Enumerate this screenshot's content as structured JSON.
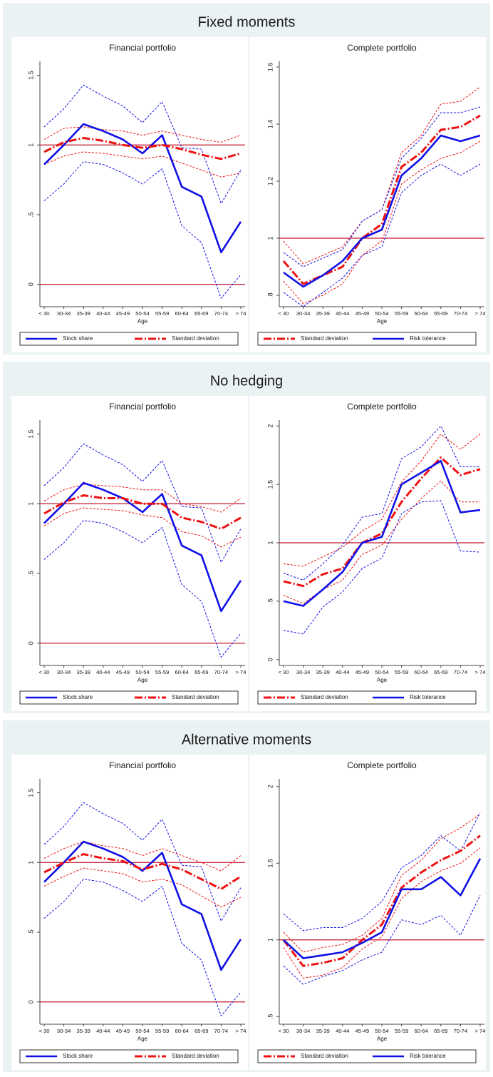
{
  "panel_titles": [
    "Fixed moments",
    "No hedging",
    "Alternative moments"
  ],
  "chart_data": [
    {
      "type": "line",
      "title": "Financial portfolio",
      "x_label": "Age",
      "categories": [
        "< 30",
        "30-34",
        "35-39",
        "40-44",
        "45-49",
        "50-54",
        "55-59",
        "60-64",
        "65-69",
        "70-74",
        "> 74"
      ],
      "series": [
        {
          "name": "Stock share",
          "color": "#1010e6",
          "line_style": "solid",
          "values": [
            0.86,
            1.0,
            1.15,
            1.1,
            1.04,
            0.94,
            1.07,
            0.7,
            0.63,
            0.23,
            0.45
          ],
          "upper": [
            1.13,
            1.26,
            1.43,
            1.35,
            1.28,
            1.16,
            1.31,
            0.98,
            0.97,
            0.58,
            0.82
          ],
          "lower": [
            0.6,
            0.72,
            0.88,
            0.86,
            0.8,
            0.72,
            0.83,
            0.42,
            0.3,
            -0.1,
            0.07
          ]
        },
        {
          "name": "Standard deviation",
          "color": "#ee1111",
          "line_style": "dash-dot",
          "values": [
            0.95,
            1.02,
            1.05,
            1.03,
            1.0,
            0.98,
            1.0,
            0.97,
            0.93,
            0.9,
            0.94
          ],
          "upper": [
            1.04,
            1.12,
            1.13,
            1.11,
            1.1,
            1.07,
            1.1,
            1.07,
            1.04,
            1.02,
            1.07
          ],
          "lower": [
            0.86,
            0.92,
            0.95,
            0.94,
            0.92,
            0.9,
            0.92,
            0.87,
            0.82,
            0.77,
            0.8
          ]
        }
      ],
      "reference_lines": [
        1,
        0
      ],
      "reference_color": "#c0142c",
      "ylim": [
        -0.16,
        1.6
      ],
      "yticks": [
        0,
        {
          "value": 0.5,
          "label": ".5"
        },
        1,
        1.5
      ]
    },
    {
      "type": "line",
      "title": "Complete portfolio",
      "x_label": "Age",
      "categories": [
        "< 30",
        "30-34",
        "35-39",
        "40-44",
        "45-49",
        "50-54",
        "55-59",
        "60-64",
        "65-69",
        "70-74",
        "> 74"
      ],
      "series": [
        {
          "name": "Standard deviation",
          "color": "#ee1111",
          "line_style": "dash-dot",
          "values": [
            0.92,
            0.84,
            0.87,
            0.9,
            1.0,
            1.05,
            1.25,
            1.3,
            1.38,
            1.39,
            1.43
          ],
          "upper": [
            0.99,
            0.91,
            0.94,
            0.97,
            1.06,
            1.1,
            1.3,
            1.36,
            1.47,
            1.48,
            1.53
          ],
          "lower": [
            0.85,
            0.77,
            0.8,
            0.84,
            0.94,
            0.99,
            1.19,
            1.24,
            1.28,
            1.3,
            1.34
          ]
        },
        {
          "name": "Risk tolerance",
          "color": "#1010e6",
          "line_style": "solid",
          "values": [
            0.88,
            0.83,
            0.87,
            0.92,
            1.0,
            1.03,
            1.22,
            1.28,
            1.36,
            1.34,
            1.36
          ],
          "upper": [
            0.95,
            0.9,
            0.93,
            0.96,
            1.06,
            1.1,
            1.28,
            1.35,
            1.44,
            1.44,
            1.46
          ],
          "lower": [
            0.81,
            0.76,
            0.81,
            0.86,
            0.94,
            0.97,
            1.16,
            1.22,
            1.26,
            1.22,
            1.26
          ]
        }
      ],
      "reference_lines": [
        1
      ],
      "reference_color": "#c0142c",
      "ylim": [
        0.76,
        1.62
      ],
      "yticks": [
        {
          "value": 0.8,
          "label": ".8"
        },
        1,
        1.2,
        1.4,
        1.6
      ]
    },
    {
      "type": "line",
      "title": "Financial portfolio",
      "x_label": "Age",
      "categories": [
        "< 30",
        "30-34",
        "35-39",
        "40-44",
        "45-49",
        "50-54",
        "55-59",
        "60-64",
        "65-69",
        "70-74",
        "> 74"
      ],
      "series": [
        {
          "name": "Stock share",
          "color": "#1010e6",
          "line_style": "solid",
          "values": [
            0.86,
            1.0,
            1.15,
            1.1,
            1.04,
            0.94,
            1.07,
            0.7,
            0.63,
            0.23,
            0.45
          ],
          "upper": [
            1.13,
            1.26,
            1.43,
            1.35,
            1.28,
            1.16,
            1.31,
            0.98,
            0.97,
            0.58,
            0.82
          ],
          "lower": [
            0.6,
            0.72,
            0.88,
            0.86,
            0.8,
            0.72,
            0.83,
            0.42,
            0.3,
            -0.1,
            0.07
          ]
        },
        {
          "name": "Standard deviation",
          "color": "#ee1111",
          "line_style": "dash-dot",
          "values": [
            0.93,
            1.01,
            1.06,
            1.04,
            1.04,
            1.0,
            1.0,
            0.9,
            0.87,
            0.82,
            0.9
          ],
          "upper": [
            1.02,
            1.1,
            1.14,
            1.13,
            1.12,
            1.1,
            1.1,
            1.0,
            0.98,
            0.94,
            1.04
          ],
          "lower": [
            0.84,
            0.93,
            0.97,
            0.96,
            0.95,
            0.92,
            0.9,
            0.8,
            0.77,
            0.69,
            0.76
          ]
        }
      ],
      "reference_lines": [
        1,
        0
      ],
      "reference_color": "#c0142c",
      "ylim": [
        -0.16,
        1.6
      ],
      "yticks": [
        0,
        {
          "value": 0.5,
          "label": ".5"
        },
        1,
        1.5
      ]
    },
    {
      "type": "line",
      "title": "Complete portfolio",
      "x_label": "Age",
      "categories": [
        "< 30",
        "30-34",
        "35-39",
        "40-44",
        "45-49",
        "50-54",
        "55-59",
        "60-64",
        "65-69",
        "70-74",
        "> 74"
      ],
      "series": [
        {
          "name": "Standard deviation",
          "color": "#ee1111",
          "line_style": "dash-dot",
          "values": [
            0.67,
            0.63,
            0.73,
            0.78,
            1.0,
            1.08,
            1.35,
            1.55,
            1.73,
            1.58,
            1.63
          ],
          "upper": [
            0.82,
            0.8,
            0.88,
            0.96,
            1.1,
            1.2,
            1.52,
            1.7,
            1.93,
            1.8,
            1.93
          ],
          "lower": [
            0.55,
            0.48,
            0.6,
            0.68,
            0.9,
            0.98,
            1.2,
            1.38,
            1.53,
            1.35,
            1.35
          ]
        },
        {
          "name": "Risk tolerance",
          "color": "#1010e6",
          "line_style": "solid",
          "values": [
            0.5,
            0.46,
            0.6,
            0.75,
            1.0,
            1.05,
            1.5,
            1.6,
            1.7,
            1.26,
            1.28
          ],
          "upper": [
            0.74,
            0.68,
            0.82,
            0.98,
            1.22,
            1.25,
            1.72,
            1.82,
            2.0,
            1.65,
            1.65
          ],
          "lower": [
            0.25,
            0.22,
            0.45,
            0.58,
            0.78,
            0.87,
            1.25,
            1.35,
            1.36,
            0.93,
            0.92
          ]
        }
      ],
      "reference_lines": [
        1
      ],
      "reference_color": "#c0142c",
      "ylim": [
        -0.05,
        2.05
      ],
      "yticks": [
        0,
        {
          "value": 0.5,
          "label": ".5"
        },
        1,
        1.5,
        2
      ]
    },
    {
      "type": "line",
      "title": "Financial portfolio",
      "x_label": "Age",
      "categories": [
        "< 30",
        "30-34",
        "35-39",
        "40-44",
        "45-49",
        "50-54",
        "55-59",
        "60-64",
        "65-69",
        "70-74",
        "> 74"
      ],
      "series": [
        {
          "name": "Stock share",
          "color": "#1010e6",
          "line_style": "solid",
          "values": [
            0.86,
            1.0,
            1.15,
            1.1,
            1.04,
            0.94,
            1.07,
            0.7,
            0.63,
            0.23,
            0.45
          ],
          "upper": [
            1.13,
            1.26,
            1.43,
            1.35,
            1.28,
            1.16,
            1.31,
            0.98,
            0.97,
            0.58,
            0.82
          ],
          "lower": [
            0.6,
            0.72,
            0.88,
            0.86,
            0.8,
            0.72,
            0.83,
            0.42,
            0.3,
            -0.1,
            0.07
          ]
        },
        {
          "name": "Standard deviation",
          "color": "#ee1111",
          "line_style": "dash-dot",
          "values": [
            0.93,
            1.0,
            1.06,
            1.03,
            1.01,
            0.95,
            0.99,
            0.95,
            0.88,
            0.81,
            0.9
          ],
          "upper": [
            1.03,
            1.1,
            1.15,
            1.12,
            1.1,
            1.05,
            1.1,
            1.05,
            1.0,
            0.94,
            1.05
          ],
          "lower": [
            0.83,
            0.9,
            0.96,
            0.94,
            0.92,
            0.86,
            0.88,
            0.84,
            0.76,
            0.68,
            0.75
          ]
        }
      ],
      "reference_lines": [
        1,
        0
      ],
      "reference_color": "#c0142c",
      "ylim": [
        -0.16,
        1.6
      ],
      "yticks": [
        0,
        {
          "value": 0.5,
          "label": ".5"
        },
        1,
        1.5
      ]
    },
    {
      "type": "line",
      "title": "Complete portfolio",
      "x_label": "Age",
      "categories": [
        "< 30",
        "30-34",
        "35-39",
        "40-44",
        "45-49",
        "50-54",
        "55-59",
        "60-64",
        "65-69",
        "70-74",
        "> 74"
      ],
      "series": [
        {
          "name": "Standard deviation",
          "color": "#ee1111",
          "line_style": "dash-dot",
          "values": [
            1.0,
            0.83,
            0.85,
            0.88,
            1.0,
            1.1,
            1.34,
            1.44,
            1.52,
            1.58,
            1.68
          ],
          "upper": [
            1.05,
            0.92,
            0.95,
            0.97,
            1.03,
            1.14,
            1.42,
            1.52,
            1.66,
            1.73,
            1.82
          ],
          "lower": [
            0.95,
            0.75,
            0.77,
            0.82,
            0.94,
            1.02,
            1.27,
            1.38,
            1.45,
            1.5,
            1.6
          ]
        },
        {
          "name": "Risk tolerance",
          "color": "#1010e6",
          "line_style": "solid",
          "values": [
            1.0,
            0.88,
            0.9,
            0.92,
            0.98,
            1.05,
            1.33,
            1.33,
            1.41,
            1.29,
            1.53
          ],
          "upper": [
            1.17,
            1.06,
            1.08,
            1.08,
            1.14,
            1.25,
            1.47,
            1.55,
            1.68,
            1.58,
            1.83
          ],
          "lower": [
            0.83,
            0.71,
            0.76,
            0.8,
            0.87,
            0.92,
            1.13,
            1.1,
            1.16,
            1.03,
            1.29
          ]
        }
      ],
      "reference_lines": [
        1
      ],
      "reference_color": "#c0142c",
      "ylim": [
        0.45,
        2.05
      ],
      "yticks": [
        {
          "value": 0.5,
          "label": ".5"
        },
        1,
        1.5,
        2
      ]
    }
  ]
}
